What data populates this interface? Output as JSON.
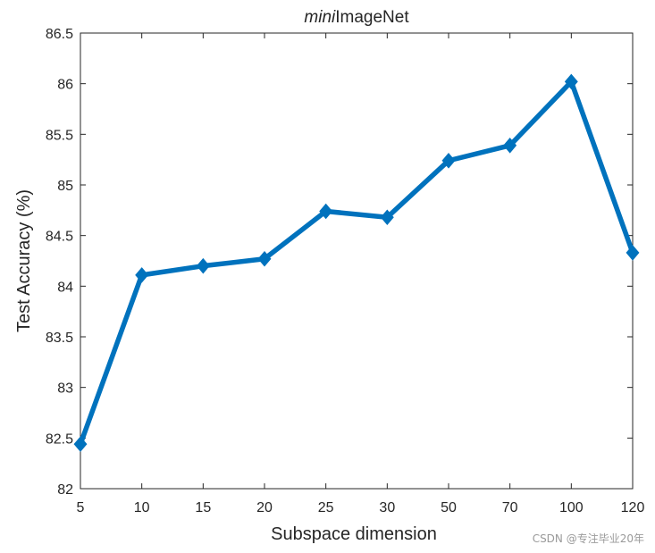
{
  "chart_data": {
    "type": "line",
    "title_italic": "mini",
    "title_rest": "ImageNet",
    "xlabel": "Subspace dimension",
    "ylabel": "Test Accuracy (%)",
    "categories": [
      "5",
      "10",
      "15",
      "20",
      "25",
      "30",
      "50",
      "70",
      "100",
      "120"
    ],
    "series": [
      {
        "values": [
          82.44,
          84.11,
          84.2,
          84.27,
          84.74,
          84.68,
          85.24,
          85.39,
          86.02,
          84.33
        ],
        "color": "#0072BD",
        "marker": "diamond"
      }
    ],
    "ylim": [
      82,
      86.5
    ],
    "yticks": [
      "82",
      "82.5",
      "83",
      "83.5",
      "84",
      "84.5",
      "85",
      "85.5",
      "86",
      "86.5"
    ],
    "grid": false
  },
  "watermark": "CSDN @专注毕业20年"
}
